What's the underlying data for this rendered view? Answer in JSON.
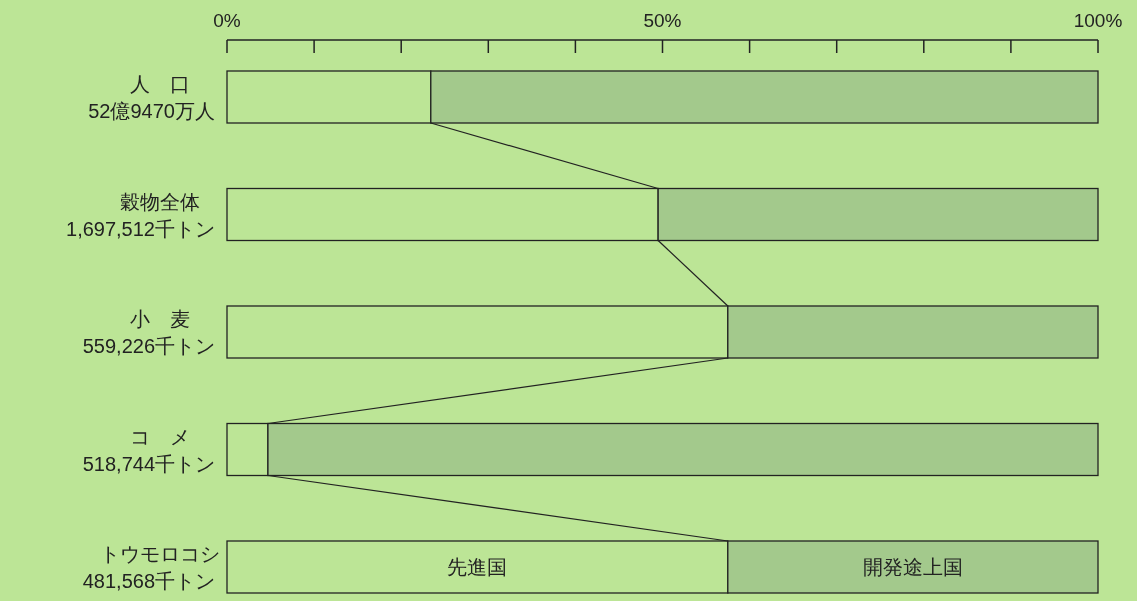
{
  "chart_data": {
    "type": "bar",
    "orientation": "horizontal",
    "stacked": true,
    "categories": [
      "人　口\n52億9470万人",
      "穀物全体\n1,697,512千トン",
      "小　麦\n559,226千トン",
      "コ　メ\n518,744千トン",
      "トウモロコシ\n481,568千トン"
    ],
    "series": [
      {
        "name": "先進国",
        "color": "#bce596",
        "values": [
          23.4,
          49.5,
          57.5,
          4.7,
          57.5
        ]
      },
      {
        "name": "開発途上国",
        "color": "#a3c98c",
        "values": [
          76.6,
          50.5,
          42.5,
          95.3,
          42.5
        ]
      }
    ],
    "xlim": [
      0,
      100
    ],
    "xticks": [
      {
        "value": 0,
        "label": "0%"
      },
      {
        "value": 10,
        "label": null
      },
      {
        "value": 20,
        "label": null
      },
      {
        "value": 30,
        "label": null
      },
      {
        "value": 40,
        "label": null
      },
      {
        "value": 50,
        "label": "50%"
      },
      {
        "value": 60,
        "label": null
      },
      {
        "value": 70,
        "label": null
      },
      {
        "value": 80,
        "label": null
      },
      {
        "value": 90,
        "label": null
      },
      {
        "value": 100,
        "label": "100%"
      }
    ]
  }
}
